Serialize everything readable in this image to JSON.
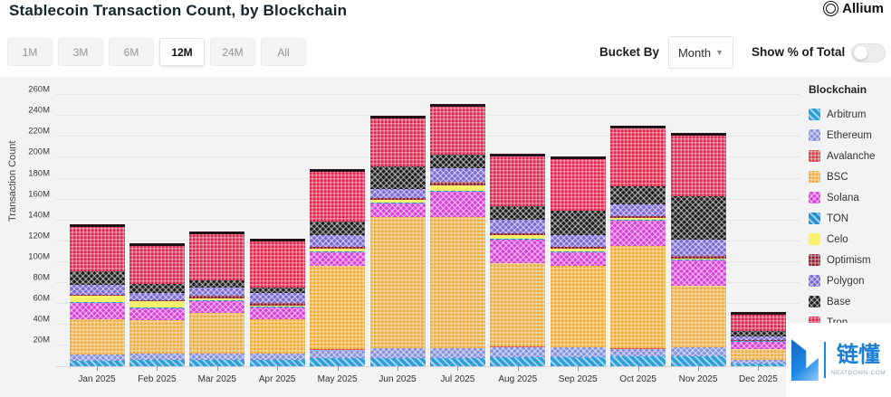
{
  "header": {
    "title": "Stablecoin Transaction Count, by Blockchain",
    "brand": "Allium"
  },
  "controls": {
    "ranges": [
      "1M",
      "3M",
      "6M",
      "12M",
      "24M",
      "All"
    ],
    "selected_range": "12M",
    "bucket_by_label": "Bucket By",
    "bucket_value": "Month",
    "toggle_label": "Show % of Total",
    "toggle_on": false
  },
  "watermark": {
    "cn": "链懂",
    "site": "NEATDOWN.COM"
  },
  "chart_data": {
    "type": "bar",
    "stacked": true,
    "title": "Stablecoin Transaction Count, by Blockchain",
    "xlabel": "",
    "ylabel": "Transaction Count",
    "legend_title": "Blockchain",
    "legend_position": "right",
    "grid": true,
    "unit": "M transactions",
    "ylim": [
      0,
      275
    ],
    "y_ticks": [
      20,
      40,
      60,
      80,
      100,
      120,
      140,
      160,
      180,
      200,
      220,
      240,
      260
    ],
    "y_tick_suffix": "M",
    "categories": [
      "Jan 2025",
      "Feb 2025",
      "Mar 2025",
      "Apr 2025",
      "May 2025",
      "Jun 2025",
      "Jul 2025",
      "Aug 2025",
      "Sep 2025",
      "Oct 2025",
      "Nov 2025",
      "Dec 2025"
    ],
    "series": [
      {
        "name": "Arbitrum",
        "color": "#2e9fd9",
        "pattern": "stripe",
        "values": [
          5,
          6,
          6,
          6,
          8,
          8,
          8,
          9,
          9,
          9.5,
          9.5,
          3
        ]
      },
      {
        "name": "Ethereum",
        "color": "#8490dd",
        "pattern": "cross",
        "values": [
          6,
          6,
          6,
          6,
          8,
          9,
          9,
          9.5,
          9,
          7,
          8.5,
          3
        ]
      },
      {
        "name": "Avalanche",
        "color": "#d64045",
        "pattern": "grid",
        "values": [
          0.5,
          0.5,
          0.5,
          0.5,
          0.5,
          0.5,
          0.5,
          0.5,
          0.5,
          0.5,
          0.5,
          0.3
        ]
      },
      {
        "name": "BSC",
        "color": "#eeab3a",
        "pattern": "grid",
        "values": [
          34,
          32,
          39,
          33,
          80,
          126,
          126,
          80,
          78,
          98,
          59,
          10.5
        ]
      },
      {
        "name": "Solana",
        "color": "#d83fd8",
        "pattern": "cross",
        "values": [
          15,
          11,
          11,
          11,
          13,
          13,
          24,
          22.5,
          13,
          25,
          24,
          7
        ]
      },
      {
        "name": "TON",
        "color": "#2490cf",
        "pattern": "stripe",
        "values": [
          1,
          1,
          1,
          1,
          1,
          1,
          1,
          1,
          1,
          1,
          1,
          0.5
        ]
      },
      {
        "name": "Celo",
        "color": "#f9f06b",
        "pattern": "solid",
        "values": [
          6,
          6,
          2,
          1,
          2.5,
          2,
          5,
          3,
          2,
          1,
          1,
          0.3
        ]
      },
      {
        "name": "Optimism",
        "color": "#8f1f2f",
        "pattern": "grid",
        "values": [
          1.5,
          1,
          2,
          2,
          1.5,
          2,
          3.5,
          2,
          2,
          2.5,
          2.5,
          0.5
        ]
      },
      {
        "name": "Polygon",
        "color": "#7a67d4",
        "pattern": "cross",
        "values": [
          9.5,
          7,
          8,
          9.5,
          11,
          9,
          13,
          13,
          11,
          10.5,
          15.5,
          3.5
        ]
      },
      {
        "name": "Base",
        "color": "#1c1c1c",
        "pattern": "cross",
        "values": [
          13,
          8.5,
          7,
          5.5,
          13,
          21,
          13,
          13,
          23.5,
          18,
          42,
          5
        ]
      },
      {
        "name": "Tron",
        "color": "#e1224a",
        "pattern": "grid",
        "values": [
          42,
          36.5,
          44,
          44,
          48,
          46,
          46,
          48,
          50,
          55,
          58,
          15.5
        ]
      }
    ]
  }
}
